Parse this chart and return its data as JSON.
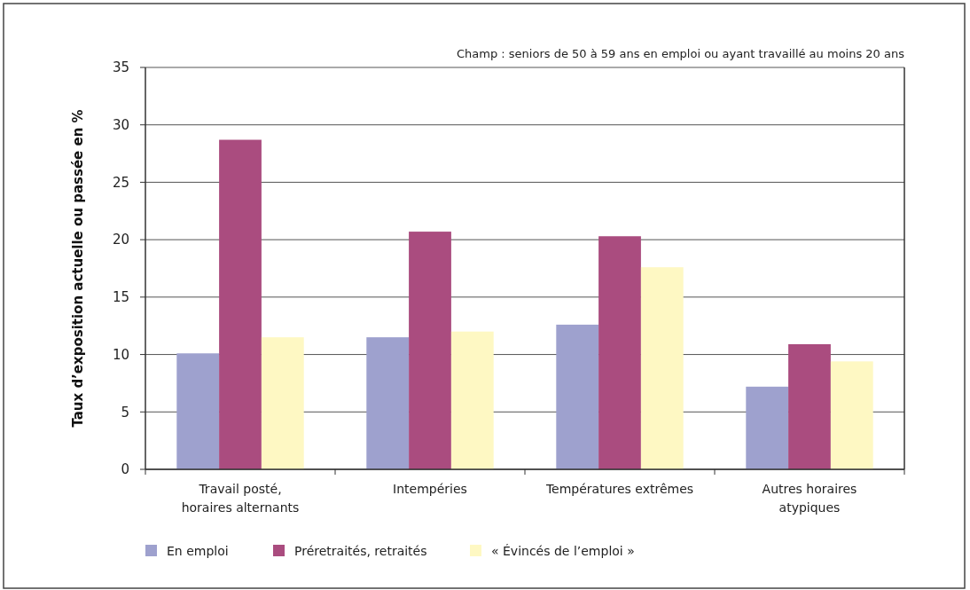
{
  "chart_data": {
    "type": "bar",
    "ylabel": "Taux d’exposition actuelle ou passée en %",
    "annotations": [
      "Champ : seniors de 50 à 59 ans en emploi ou ayant travaillé au moins 20 ans"
    ],
    "categories": [
      "Travail posté,\nhoraires alternants",
      "Intempéries",
      "Températures extrêmes",
      "Autres horaires\natypiques"
    ],
    "series": [
      {
        "name": "En emploi",
        "color": "#9ea1ce",
        "values": [
          10.1,
          11.5,
          12.6,
          7.2
        ]
      },
      {
        "name": "Préretraités, retraités",
        "color": "#aa4c7f",
        "values": [
          28.7,
          20.7,
          20.3,
          10.9
        ]
      },
      {
        "name": "« Évincés de l’emploi »",
        "color": "#fef8c3",
        "values": [
          11.5,
          12.0,
          17.6,
          9.4
        ]
      }
    ],
    "ylim": [
      0,
      35
    ],
    "yticks": [
      0,
      5,
      10,
      15,
      20,
      25,
      30,
      35
    ],
    "grid": "y",
    "legend": "bottom"
  }
}
